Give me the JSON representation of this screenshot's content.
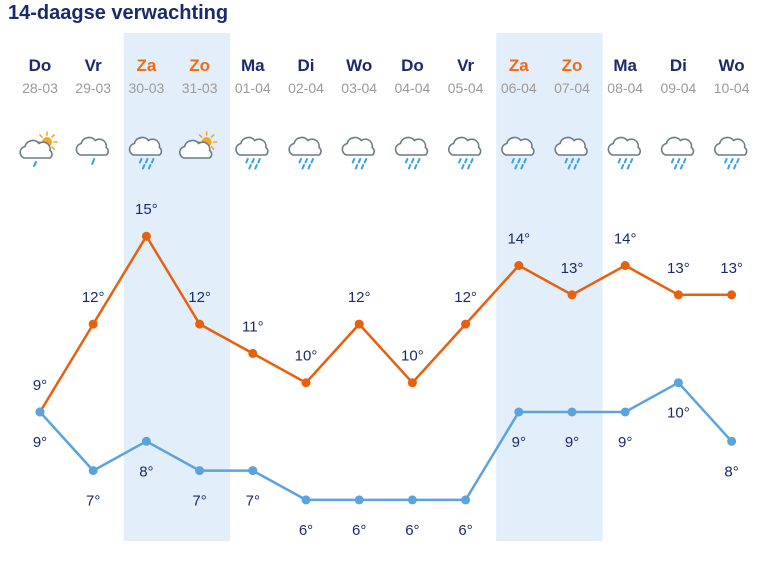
{
  "title": "14-daagse verwachting",
  "colors": {
    "weekday": "#1a2a6c",
    "weekend": "#ef6a10",
    "date": "#9a9a9a",
    "weekend_band": "#e3eefb",
    "max_line": "#e8600e",
    "min_line": "#5ba3dc",
    "label": "#1a2a6c",
    "icon_cloud": "#6b7b86",
    "icon_rain": "#3aa0e0",
    "icon_sun": "#f5a623"
  },
  "chart_data": {
    "type": "line",
    "categories": [
      "28-03",
      "29-03",
      "30-03",
      "31-03",
      "01-04",
      "02-04",
      "03-04",
      "04-04",
      "05-04",
      "06-04",
      "07-04",
      "08-04",
      "09-04",
      "10-04"
    ],
    "days": [
      {
        "name": "Do",
        "date": "28-03",
        "weekend": false,
        "icon": "partly-sunny-drizzle-icon"
      },
      {
        "name": "Vr",
        "date": "29-03",
        "weekend": false,
        "icon": "cloud-light-rain-icon"
      },
      {
        "name": "Za",
        "date": "30-03",
        "weekend": true,
        "icon": "cloud-rain-icon"
      },
      {
        "name": "Zo",
        "date": "31-03",
        "weekend": true,
        "icon": "sun-behind-cloud-icon"
      },
      {
        "name": "Ma",
        "date": "01-04",
        "weekend": false,
        "icon": "cloud-rain-icon"
      },
      {
        "name": "Di",
        "date": "02-04",
        "weekend": false,
        "icon": "cloud-rain-icon"
      },
      {
        "name": "Wo",
        "date": "03-04",
        "weekend": false,
        "icon": "cloud-rain-icon"
      },
      {
        "name": "Do",
        "date": "04-04",
        "weekend": false,
        "icon": "cloud-rain-icon"
      },
      {
        "name": "Vr",
        "date": "05-04",
        "weekend": false,
        "icon": "cloud-rain-icon"
      },
      {
        "name": "Za",
        "date": "06-04",
        "weekend": true,
        "icon": "cloud-rain-icon"
      },
      {
        "name": "Zo",
        "date": "07-04",
        "weekend": true,
        "icon": "cloud-rain-icon"
      },
      {
        "name": "Ma",
        "date": "08-04",
        "weekend": false,
        "icon": "cloud-rain-icon"
      },
      {
        "name": "Di",
        "date": "09-04",
        "weekend": false,
        "icon": "cloud-rain-icon"
      },
      {
        "name": "Wo",
        "date": "10-04",
        "weekend": false,
        "icon": "cloud-rain-icon"
      }
    ],
    "series": [
      {
        "values": [
          9,
          12,
          15,
          12,
          11,
          10,
          12,
          10,
          12,
          14,
          13,
          14,
          13,
          13
        ],
        "labels": [
          "9°",
          "12°",
          "15°",
          "12°",
          "11°",
          "10°",
          "12°",
          "10°",
          "12°",
          "14°",
          "13°",
          "14°",
          "13°",
          "13°"
        ]
      },
      {
        "values": [
          9,
          7,
          8,
          7,
          7,
          6,
          6,
          6,
          6,
          9,
          9,
          9,
          10,
          8
        ],
        "labels": [
          "9°",
          "7°",
          "8°",
          "7°",
          "7°",
          "6°",
          "6°",
          "6°",
          "6°",
          "9°",
          "9°",
          "9°",
          "10°",
          "8°"
        ]
      }
    ],
    "ylim": [
      6,
      15
    ],
    "grid": false,
    "legend": "none"
  }
}
